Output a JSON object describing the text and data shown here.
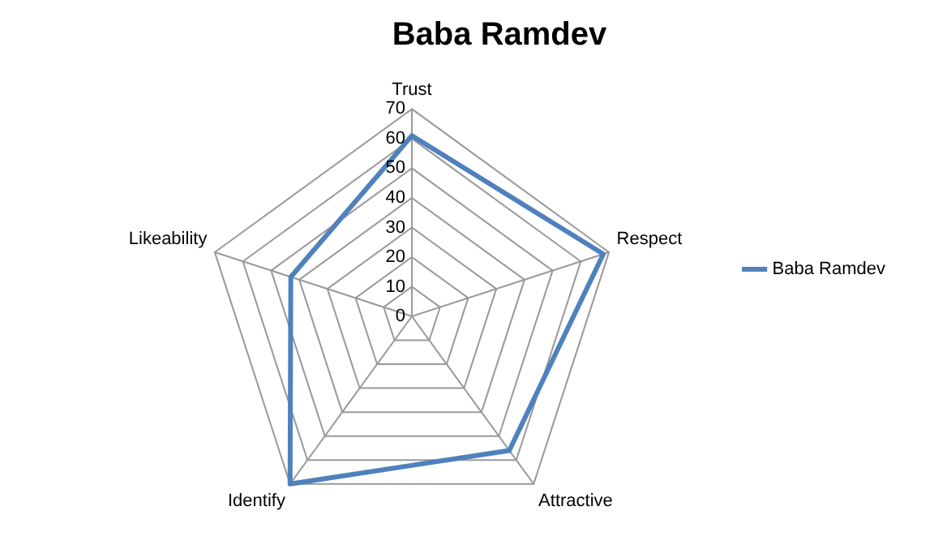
{
  "chart_data": {
    "type": "radar",
    "title": "Baba Ramdev",
    "categories": [
      "Trust",
      "Respect",
      "Attractive",
      "Identify",
      "Likeability"
    ],
    "series": [
      {
        "name": "Baba Ramdev",
        "color": "#4f81bd",
        "values": [
          61,
          68,
          56,
          70,
          43
        ]
      }
    ],
    "ylim": [
      0,
      70
    ],
    "yticks": [
      0,
      10,
      20,
      30,
      40,
      50,
      60,
      70
    ],
    "grid": true,
    "legend": "right",
    "marker": "none"
  }
}
